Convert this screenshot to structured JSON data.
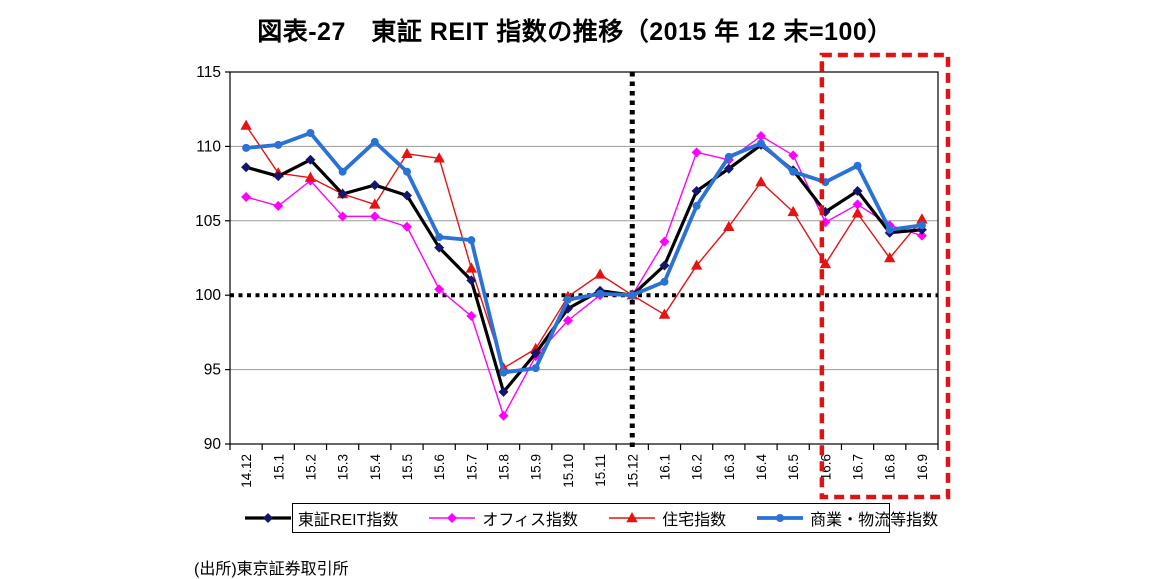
{
  "title": "図表-27　東証 REIT 指数の推移（2015 年 12 末=100）",
  "source": "(出所)東京証券取引所",
  "chart_data": {
    "type": "line",
    "title": "図表-27　東証 REIT 指数の推移（2015 年 12 末=100）",
    "categories": [
      "14.12",
      "15.1",
      "15.2",
      "15.3",
      "15.4",
      "15.5",
      "15.6",
      "15.7",
      "15.8",
      "15.9",
      "15.10",
      "15.11",
      "15.12",
      "16.1",
      "16.2",
      "16.3",
      "16.4",
      "16.5",
      "16.6",
      "16.7",
      "16.8",
      "16.9"
    ],
    "series": [
      {
        "name": "東証REIT指数",
        "marker": "diamond",
        "line_color": "#000000",
        "marker_color": "#15156b",
        "line_width": 3.2,
        "values": [
          108.6,
          108.0,
          109.1,
          106.8,
          107.4,
          106.7,
          103.2,
          101.0,
          93.5,
          96.1,
          99.1,
          100.3,
          100.0,
          102.0,
          107.0,
          108.5,
          110.1,
          108.4,
          105.6,
          107.0,
          104.2,
          104.4
        ]
      },
      {
        "name": "オフィス指数",
        "marker": "diamond",
        "line_color": "#ff00ff",
        "marker_color": "#ff00ff",
        "line_width": 1.4,
        "values": [
          106.6,
          106.0,
          107.7,
          105.3,
          105.3,
          104.6,
          100.4,
          98.6,
          91.9,
          95.9,
          98.3,
          100.0,
          100.0,
          103.6,
          109.6,
          109.1,
          110.7,
          109.4,
          104.9,
          106.1,
          104.7,
          104.0
        ]
      },
      {
        "name": "住宅指数",
        "marker": "triangle",
        "line_color": "#e81212",
        "marker_color": "#e81212",
        "line_width": 1.4,
        "values": [
          111.4,
          108.2,
          107.9,
          106.8,
          106.1,
          109.5,
          109.2,
          101.8,
          95.1,
          96.4,
          99.9,
          101.4,
          100.0,
          98.7,
          102.0,
          104.6,
          107.6,
          105.6,
          102.1,
          105.5,
          102.5,
          105.1
        ]
      },
      {
        "name": "商業・物流等指数",
        "marker": "circle",
        "line_color": "#2a72d4",
        "marker_color": "#2a72d4",
        "line_width": 3.8,
        "values": [
          109.9,
          110.1,
          110.9,
          108.3,
          110.3,
          108.3,
          103.9,
          103.7,
          94.8,
          95.1,
          99.7,
          100.1,
          100.0,
          100.9,
          106.0,
          109.3,
          110.2,
          108.3,
          107.6,
          108.7,
          104.4,
          104.7
        ]
      }
    ],
    "ylim": [
      90,
      115
    ],
    "yticks": [
      90,
      95,
      100,
      105,
      110,
      115
    ],
    "baseline_value": 100,
    "baseline_style": "dotted",
    "vline_category": "15.12",
    "highlight_box": {
      "from_category": "16.6",
      "to_category": "16.9",
      "color": "#e01212"
    },
    "grid": "horizontal",
    "legend_position": "bottom",
    "colors": {
      "grid": "#9a9a9a",
      "axis": "#000000",
      "background": "#ffffff"
    }
  }
}
